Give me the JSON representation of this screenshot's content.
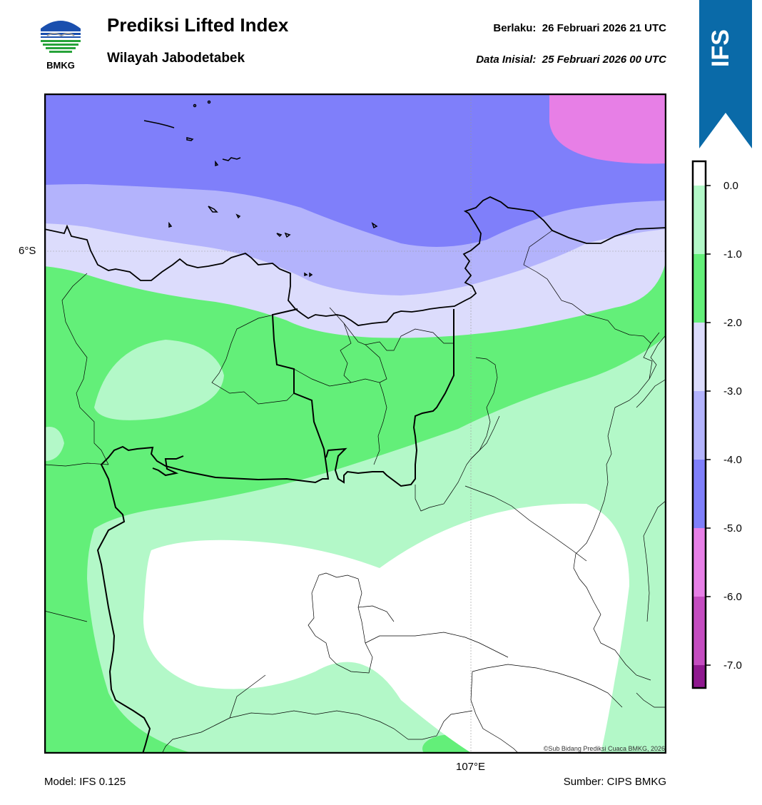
{
  "header": {
    "title": "Prediksi Lifted Index",
    "subtitle": "Wilayah Jabodetabek",
    "valid_label": "Berlaku:",
    "valid_time": "26 Februari 2026 21 UTC",
    "init_label": "Data Inisial:",
    "init_time": "25 Februari 2026 00 UTC"
  },
  "logo": {
    "text": "BMKG",
    "icon": "bmkg-logo-icon"
  },
  "model_badge": {
    "text": "IFS",
    "color": "#0a6aa8"
  },
  "map": {
    "lat_label": "6°S",
    "lon_label": "107°E",
    "credit": "©Sub Bidang Prediksi Cuaca BMKG, 2026"
  },
  "footer": {
    "model": "Model: IFS 0.125",
    "source": "Sumber: CIPS BMKG"
  },
  "colorbar": {
    "ticks": [
      "0.0",
      "-1.0",
      "-2.0",
      "-3.0",
      "-4.0",
      "-5.0",
      "-6.0",
      "-7.0"
    ],
    "colors": {
      "above_0": "#ffffff",
      "0_to_-1": "#b3f8c8",
      "-1_to_-2": "#63ef79",
      "-2_to_-3": "#dcdcfc",
      "-3_to_-4": "#b3b3fc",
      "-4_to_-5": "#7f7ffa",
      "-5_to_-6": "#e77fe6",
      "-6_to_-7": "#c44cc0",
      "below_-7": "#8f198f"
    }
  }
}
